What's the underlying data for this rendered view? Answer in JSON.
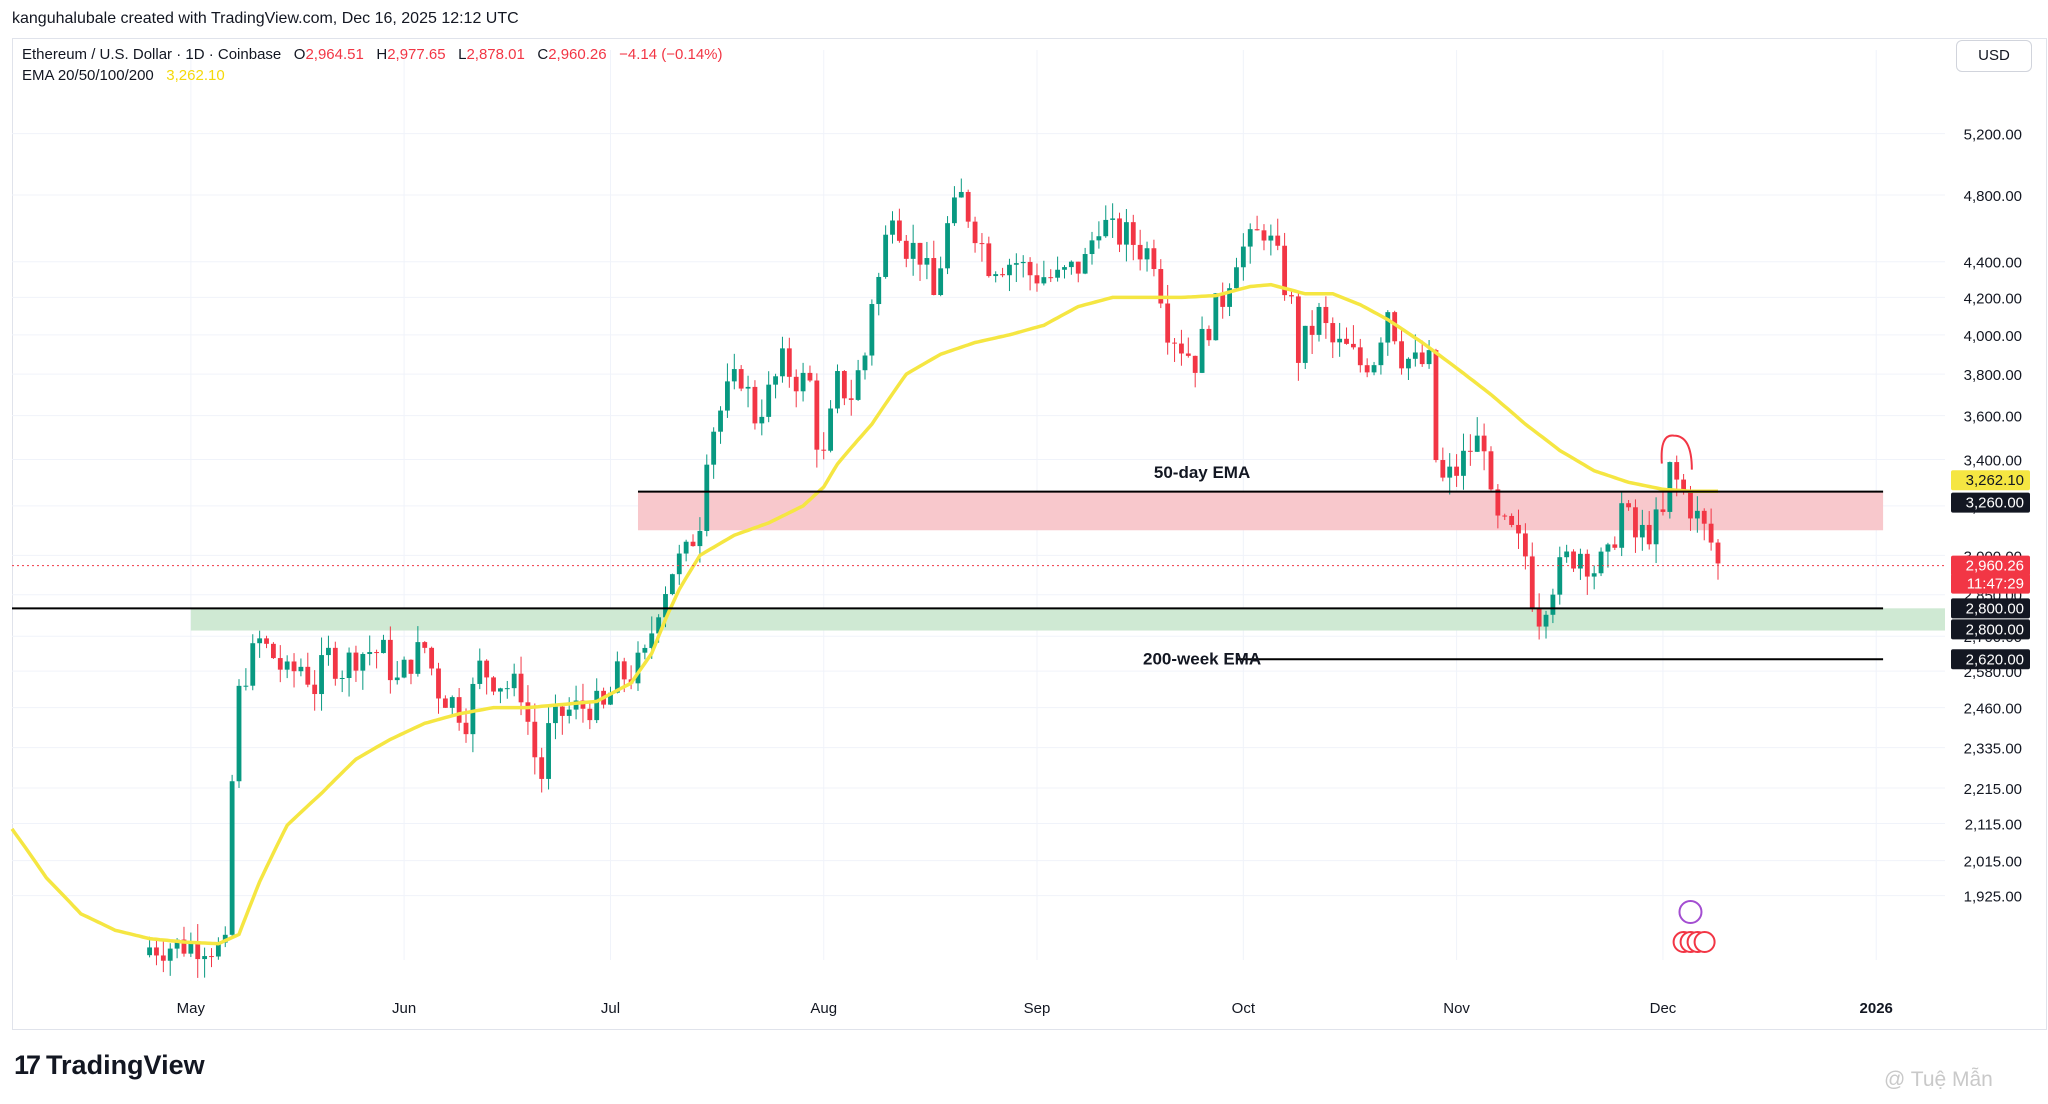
{
  "header": {
    "attribution": "kanguhalubale created with TradingView.com, Dec 16, 2025 12:12 UTC"
  },
  "legend": {
    "symbol": "Ethereum / U.S. Dollar · 1D · Coinbase",
    "open_label": "O",
    "open": "2,964.51",
    "high_label": "H",
    "high": "2,977.65",
    "low_label": "L",
    "low": "2,878.01",
    "close_label": "C",
    "close": "2,960.26",
    "change": "−4.14 (−0.14%)",
    "ema_label": "EMA 20/50/100/200",
    "ema_value": "3,262.10"
  },
  "currency": "USD",
  "brand": {
    "logo": "17",
    "name": "TradingView"
  },
  "watermark": "@ Tuệ Mẫn",
  "colors": {
    "up": "#089981",
    "down": "#f23645",
    "ema": "#f5e642",
    "resistance_zone": "#f8c8cc",
    "support_zone": "#cfe9d3",
    "line": "#000000"
  },
  "chart_data": {
    "type": "candlestick",
    "title": "Ethereum / U.S. Dollar · 1D · Coinbase",
    "scale": "log",
    "ylim": [
      1770,
      5650
    ],
    "y_ticks": [
      {
        "value": 5200,
        "label": "5,200.00"
      },
      {
        "value": 4800,
        "label": "4,800.00"
      },
      {
        "value": 4400,
        "label": "4,400.00"
      },
      {
        "value": 4200,
        "label": "4,200.00"
      },
      {
        "value": 4000,
        "label": "4,000.00"
      },
      {
        "value": 3800,
        "label": "3,800.00"
      },
      {
        "value": 3600,
        "label": "3,600.00"
      },
      {
        "value": 3400,
        "label": "3,400.00"
      },
      {
        "value": 3200,
        "label": "3,200.00"
      },
      {
        "value": 3000,
        "label": "3,000.00"
      },
      {
        "value": 2850,
        "label": "2,850.00"
      },
      {
        "value": 2700,
        "label": "2,700.00"
      },
      {
        "value": 2580,
        "label": "2,580.00"
      },
      {
        "value": 2460,
        "label": "2,460.00"
      },
      {
        "value": 2335,
        "label": "2,335.00"
      },
      {
        "value": 2215,
        "label": "2,215.00"
      },
      {
        "value": 2115,
        "label": "2,115.00"
      },
      {
        "value": 2015,
        "label": "2,015.00"
      },
      {
        "value": 1925,
        "label": "1,925.00"
      }
    ],
    "x_ticks": [
      {
        "day": 26,
        "label": "May"
      },
      {
        "day": 57,
        "label": "Jun"
      },
      {
        "day": 87,
        "label": "Jul"
      },
      {
        "day": 118,
        "label": "Aug"
      },
      {
        "day": 149,
        "label": "Sep"
      },
      {
        "day": 179,
        "label": "Oct"
      },
      {
        "day": 210,
        "label": "Nov"
      },
      {
        "day": 240,
        "label": "Dec"
      },
      {
        "day": 271,
        "label": "2026"
      }
    ],
    "day_range": [
      0,
      281
    ],
    "anchors": [
      [
        20,
        1800
      ],
      [
        28,
        1810
      ],
      [
        31,
        1790
      ],
      [
        32,
        2230
      ],
      [
        33,
        2500
      ],
      [
        34,
        2580
      ],
      [
        36,
        2680
      ],
      [
        38,
        2630
      ],
      [
        40,
        2560
      ],
      [
        42,
        2600
      ],
      [
        44,
        2530
      ],
      [
        46,
        2630
      ],
      [
        48,
        2590
      ],
      [
        50,
        2640
      ],
      [
        52,
        2650
      ],
      [
        54,
        2640
      ],
      [
        56,
        2540
      ],
      [
        58,
        2620
      ],
      [
        60,
        2660
      ],
      [
        62,
        2520
      ],
      [
        64,
        2480
      ],
      [
        66,
        2430
      ],
      [
        68,
        2590
      ],
      [
        70,
        2560
      ],
      [
        72,
        2530
      ],
      [
        74,
        2520
      ],
      [
        76,
        2310
      ],
      [
        77,
        2250
      ],
      [
        78,
        2380
      ],
      [
        80,
        2440
      ],
      [
        84,
        2470
      ],
      [
        86,
        2450
      ],
      [
        88,
        2560
      ],
      [
        90,
        2570
      ],
      [
        92,
        2620
      ],
      [
        94,
        2820
      ],
      [
        96,
        2950
      ],
      [
        98,
        3000
      ],
      [
        100,
        3150
      ],
      [
        101,
        3450
      ],
      [
        102,
        3550
      ],
      [
        104,
        3700
      ],
      [
        106,
        3800
      ],
      [
        108,
        3600
      ],
      [
        110,
        3700
      ],
      [
        112,
        3850
      ],
      [
        114,
        3780
      ],
      [
        116,
        3750
      ],
      [
        117,
        3500
      ],
      [
        118,
        3400
      ],
      [
        120,
        3750
      ],
      [
        122,
        3700
      ],
      [
        124,
        3900
      ],
      [
        125,
        4200
      ],
      [
        126,
        4300
      ],
      [
        128,
        4750
      ],
      [
        130,
        4500
      ],
      [
        132,
        4450
      ],
      [
        134,
        4200
      ],
      [
        136,
        4600
      ],
      [
        138,
        4780
      ],
      [
        140,
        4600
      ],
      [
        142,
        4400
      ],
      [
        144,
        4400
      ],
      [
        146,
        4400
      ],
      [
        148,
        4330
      ],
      [
        150,
        4320
      ],
      [
        152,
        4300
      ],
      [
        154,
        4350
      ],
      [
        156,
        4400
      ],
      [
        158,
        4650
      ],
      [
        160,
        4560
      ],
      [
        162,
        4550
      ],
      [
        164,
        4480
      ],
      [
        166,
        4440
      ],
      [
        168,
        4050
      ],
      [
        170,
        3950
      ],
      [
        172,
        3870
      ],
      [
        174,
        4060
      ],
      [
        176,
        4200
      ],
      [
        178,
        4450
      ],
      [
        180,
        4500
      ],
      [
        182,
        4600
      ],
      [
        184,
        4400
      ],
      [
        186,
        4150
      ],
      [
        187,
        3900
      ],
      [
        190,
        4100
      ],
      [
        192,
        3950
      ],
      [
        194,
        3920
      ],
      [
        196,
        3850
      ],
      [
        198,
        3890
      ],
      [
        200,
        4150
      ],
      [
        202,
        3900
      ],
      [
        204,
        3850
      ],
      [
        206,
        3850
      ],
      [
        207,
        3400
      ],
      [
        208,
        3300
      ],
      [
        210,
        3350
      ],
      [
        212,
        3450
      ],
      [
        214,
        3500
      ],
      [
        215,
        3200
      ],
      [
        216,
        3120
      ],
      [
        218,
        3080
      ],
      [
        220,
        3000
      ],
      [
        221,
        2850
      ],
      [
        222,
        2780
      ],
      [
        224,
        2900
      ],
      [
        226,
        2980
      ],
      [
        228,
        3020
      ],
      [
        230,
        2950
      ],
      [
        232,
        2980
      ],
      [
        234,
        3200
      ],
      [
        236,
        3070
      ],
      [
        238,
        3100
      ],
      [
        240,
        3150
      ],
      [
        241,
        3350
      ],
      [
        242,
        3300
      ],
      [
        244,
        3200
      ],
      [
        246,
        3100
      ],
      [
        247,
        3050
      ],
      [
        248,
        2960
      ]
    ],
    "ema_anchors": [
      [
        0,
        2100
      ],
      [
        5,
        1970
      ],
      [
        10,
        1880
      ],
      [
        15,
        1840
      ],
      [
        20,
        1820
      ],
      [
        25,
        1812
      ],
      [
        30,
        1808
      ],
      [
        33,
        1830
      ],
      [
        36,
        1960
      ],
      [
        40,
        2110
      ],
      [
        45,
        2200
      ],
      [
        50,
        2300
      ],
      [
        55,
        2360
      ],
      [
        60,
        2410
      ],
      [
        65,
        2440
      ],
      [
        70,
        2460
      ],
      [
        75,
        2460
      ],
      [
        80,
        2470
      ],
      [
        85,
        2480
      ],
      [
        90,
        2540
      ],
      [
        93,
        2640
      ],
      [
        95,
        2760
      ],
      [
        97,
        2870
      ],
      [
        100,
        3000
      ],
      [
        105,
        3080
      ],
      [
        110,
        3130
      ],
      [
        115,
        3200
      ],
      [
        118,
        3280
      ],
      [
        120,
        3380
      ],
      [
        125,
        3560
      ],
      [
        130,
        3800
      ],
      [
        135,
        3900
      ],
      [
        140,
        3960
      ],
      [
        145,
        4000
      ],
      [
        150,
        4050
      ],
      [
        155,
        4150
      ],
      [
        160,
        4200
      ],
      [
        165,
        4200
      ],
      [
        170,
        4200
      ],
      [
        175,
        4210
      ],
      [
        180,
        4260
      ],
      [
        183,
        4270
      ],
      [
        188,
        4220
      ],
      [
        192,
        4220
      ],
      [
        196,
        4160
      ],
      [
        200,
        4080
      ],
      [
        205,
        3960
      ],
      [
        210,
        3830
      ],
      [
        215,
        3700
      ],
      [
        220,
        3560
      ],
      [
        225,
        3440
      ],
      [
        230,
        3350
      ],
      [
        235,
        3300
      ],
      [
        240,
        3270
      ],
      [
        244,
        3262
      ],
      [
        248,
        3262
      ]
    ],
    "annotations": [
      {
        "type": "zone",
        "name": "resistance",
        "from": 3100,
        "to": 3260,
        "day_start": 91,
        "day_end": 272
      },
      {
        "type": "zone",
        "name": "support",
        "from": 2720,
        "to": 2800,
        "day_start": 26,
        "day_end": 281
      },
      {
        "type": "hline",
        "value": 3260,
        "day_start": 91,
        "day_end": 272,
        "price_label": "3,260.00"
      },
      {
        "type": "hline",
        "value": 2800,
        "day_start": 0,
        "day_end": 272,
        "price_label": "2,800.00"
      },
      {
        "type": "hline",
        "value": 2620,
        "day_start": 178,
        "day_end": 272,
        "price_label": "2,620.00"
      },
      {
        "type": "text",
        "text": "50-day EMA",
        "day": 173,
        "value": 3340
      },
      {
        "type": "text",
        "text": "200-week EMA",
        "day": 173,
        "value": 2620
      }
    ],
    "price_labels": {
      "ema": "3,262.10",
      "last": "2,960.26",
      "countdown": "11:47:29",
      "support_a": "2,800.00",
      "support_b": "2,800.00",
      "resistance": "3,260.00",
      "week_ema": "2,620.00"
    },
    "series": [
      {
        "name": "ETHUSD",
        "type": "candlestick"
      },
      {
        "name": "EMA 20/50/100/200",
        "type": "line"
      }
    ]
  }
}
